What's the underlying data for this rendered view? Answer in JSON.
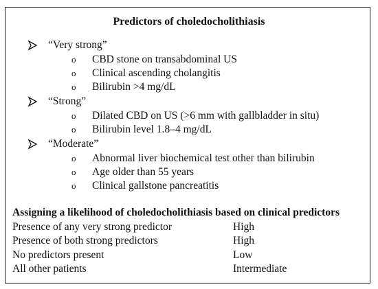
{
  "title": "Predictors of choledocholithiasis",
  "categories": [
    {
      "label": "“Very strong”",
      "items": [
        "CBD stone on transabdominal US",
        "Clinical ascending cholangitis",
        "Bilirubin >4 mg/dL"
      ]
    },
    {
      "label": "“Strong”",
      "items": [
        "Dilated CBD on US (>6 mm with gallbladder in situ)",
        "Bilirubin level 1.8–4 mg/dL"
      ]
    },
    {
      "label": "“Moderate”",
      "items": [
        "Abnormal liver biochemical test other than bilirubin",
        "Age older than 55 years",
        "Clinical gallstone pancreatitis"
      ]
    }
  ],
  "bullet_char": "o",
  "likelihood": {
    "heading": "Assigning a likelihood of choledocholithiasis based on clinical predictors",
    "rows": [
      {
        "condition": "Presence of any very strong predictor",
        "likelihood": "High"
      },
      {
        "condition": "Presence of both strong predictors",
        "likelihood": "High"
      },
      {
        "condition": "No predictors present",
        "likelihood": "Low"
      },
      {
        "condition": "All other patients",
        "likelihood": "Intermediate"
      }
    ]
  }
}
